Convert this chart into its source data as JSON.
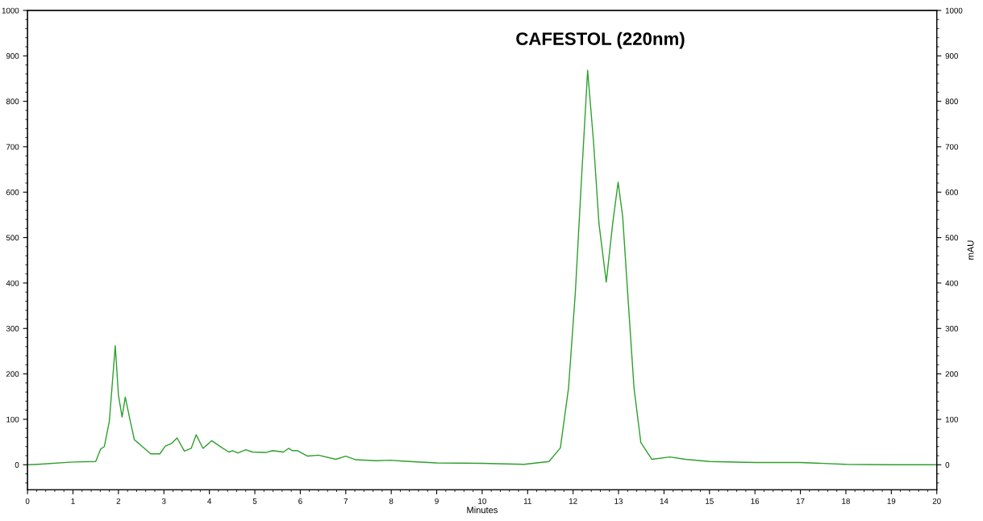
{
  "chart_data": {
    "type": "line",
    "title": "CAFESTOL (220nm)",
    "xlabel": "Minutes",
    "y2label": "mAU",
    "xlim": [
      0,
      20
    ],
    "xticks": [
      0,
      1,
      2,
      3,
      4,
      5,
      6,
      7,
      8,
      9,
      10,
      11,
      12,
      13,
      14,
      15,
      16,
      17,
      18,
      19,
      20
    ],
    "ylim": [
      -55,
      1000
    ],
    "yticks": [
      0,
      100,
      200,
      300,
      400,
      500,
      600,
      700,
      800,
      900,
      1000
    ],
    "y2lim": [
      -55,
      1000
    ],
    "y2ticks": [
      0,
      100,
      200,
      300,
      400,
      500,
      600,
      700,
      800,
      900,
      1000
    ],
    "grid": false,
    "legend": false,
    "marker": "none",
    "line_style": "solid",
    "series": [
      {
        "color": "#2ca02c",
        "x": [
          0,
          0.22,
          1.0,
          1.5,
          1.61,
          1.69,
          1.8,
          1.93,
          2.0,
          2.08,
          2.15,
          2.26,
          2.35,
          2.47,
          2.71,
          2.91,
          3.03,
          3.17,
          3.29,
          3.45,
          3.6,
          3.71,
          3.86,
          4.05,
          4.27,
          4.43,
          4.51,
          4.63,
          4.8,
          4.95,
          5.24,
          5.39,
          5.63,
          5.74,
          5.83,
          5.94,
          6.16,
          6.4,
          6.78,
          7.0,
          7.22,
          7.67,
          7.99,
          8.26,
          9.0,
          10.0,
          10.92,
          11.47,
          11.72,
          11.9,
          12.05,
          12.18,
          12.32,
          12.45,
          12.57,
          12.73,
          12.87,
          12.99,
          13.09,
          13.22,
          13.34,
          13.49,
          13.73,
          14.13,
          14.47,
          15.0,
          16.0,
          17.0,
          18.0,
          19.0,
          20.0
        ],
        "values": [
          0,
          1,
          6,
          7,
          35,
          40,
          96,
          262,
          153,
          105,
          149,
          96,
          55,
          45,
          24,
          24,
          41,
          47,
          59,
          30,
          36,
          66,
          36,
          53,
          38,
          28,
          31,
          26,
          33,
          28,
          27,
          31,
          28,
          36,
          31,
          31,
          19,
          21,
          12,
          19,
          11,
          9,
          10,
          8,
          4,
          3,
          1,
          7,
          37,
          169,
          380,
          620,
          868,
          710,
          530,
          402,
          530,
          622,
          547,
          349,
          169,
          49,
          12,
          17,
          12,
          7,
          5,
          5,
          1,
          0,
          0
        ]
      }
    ]
  }
}
